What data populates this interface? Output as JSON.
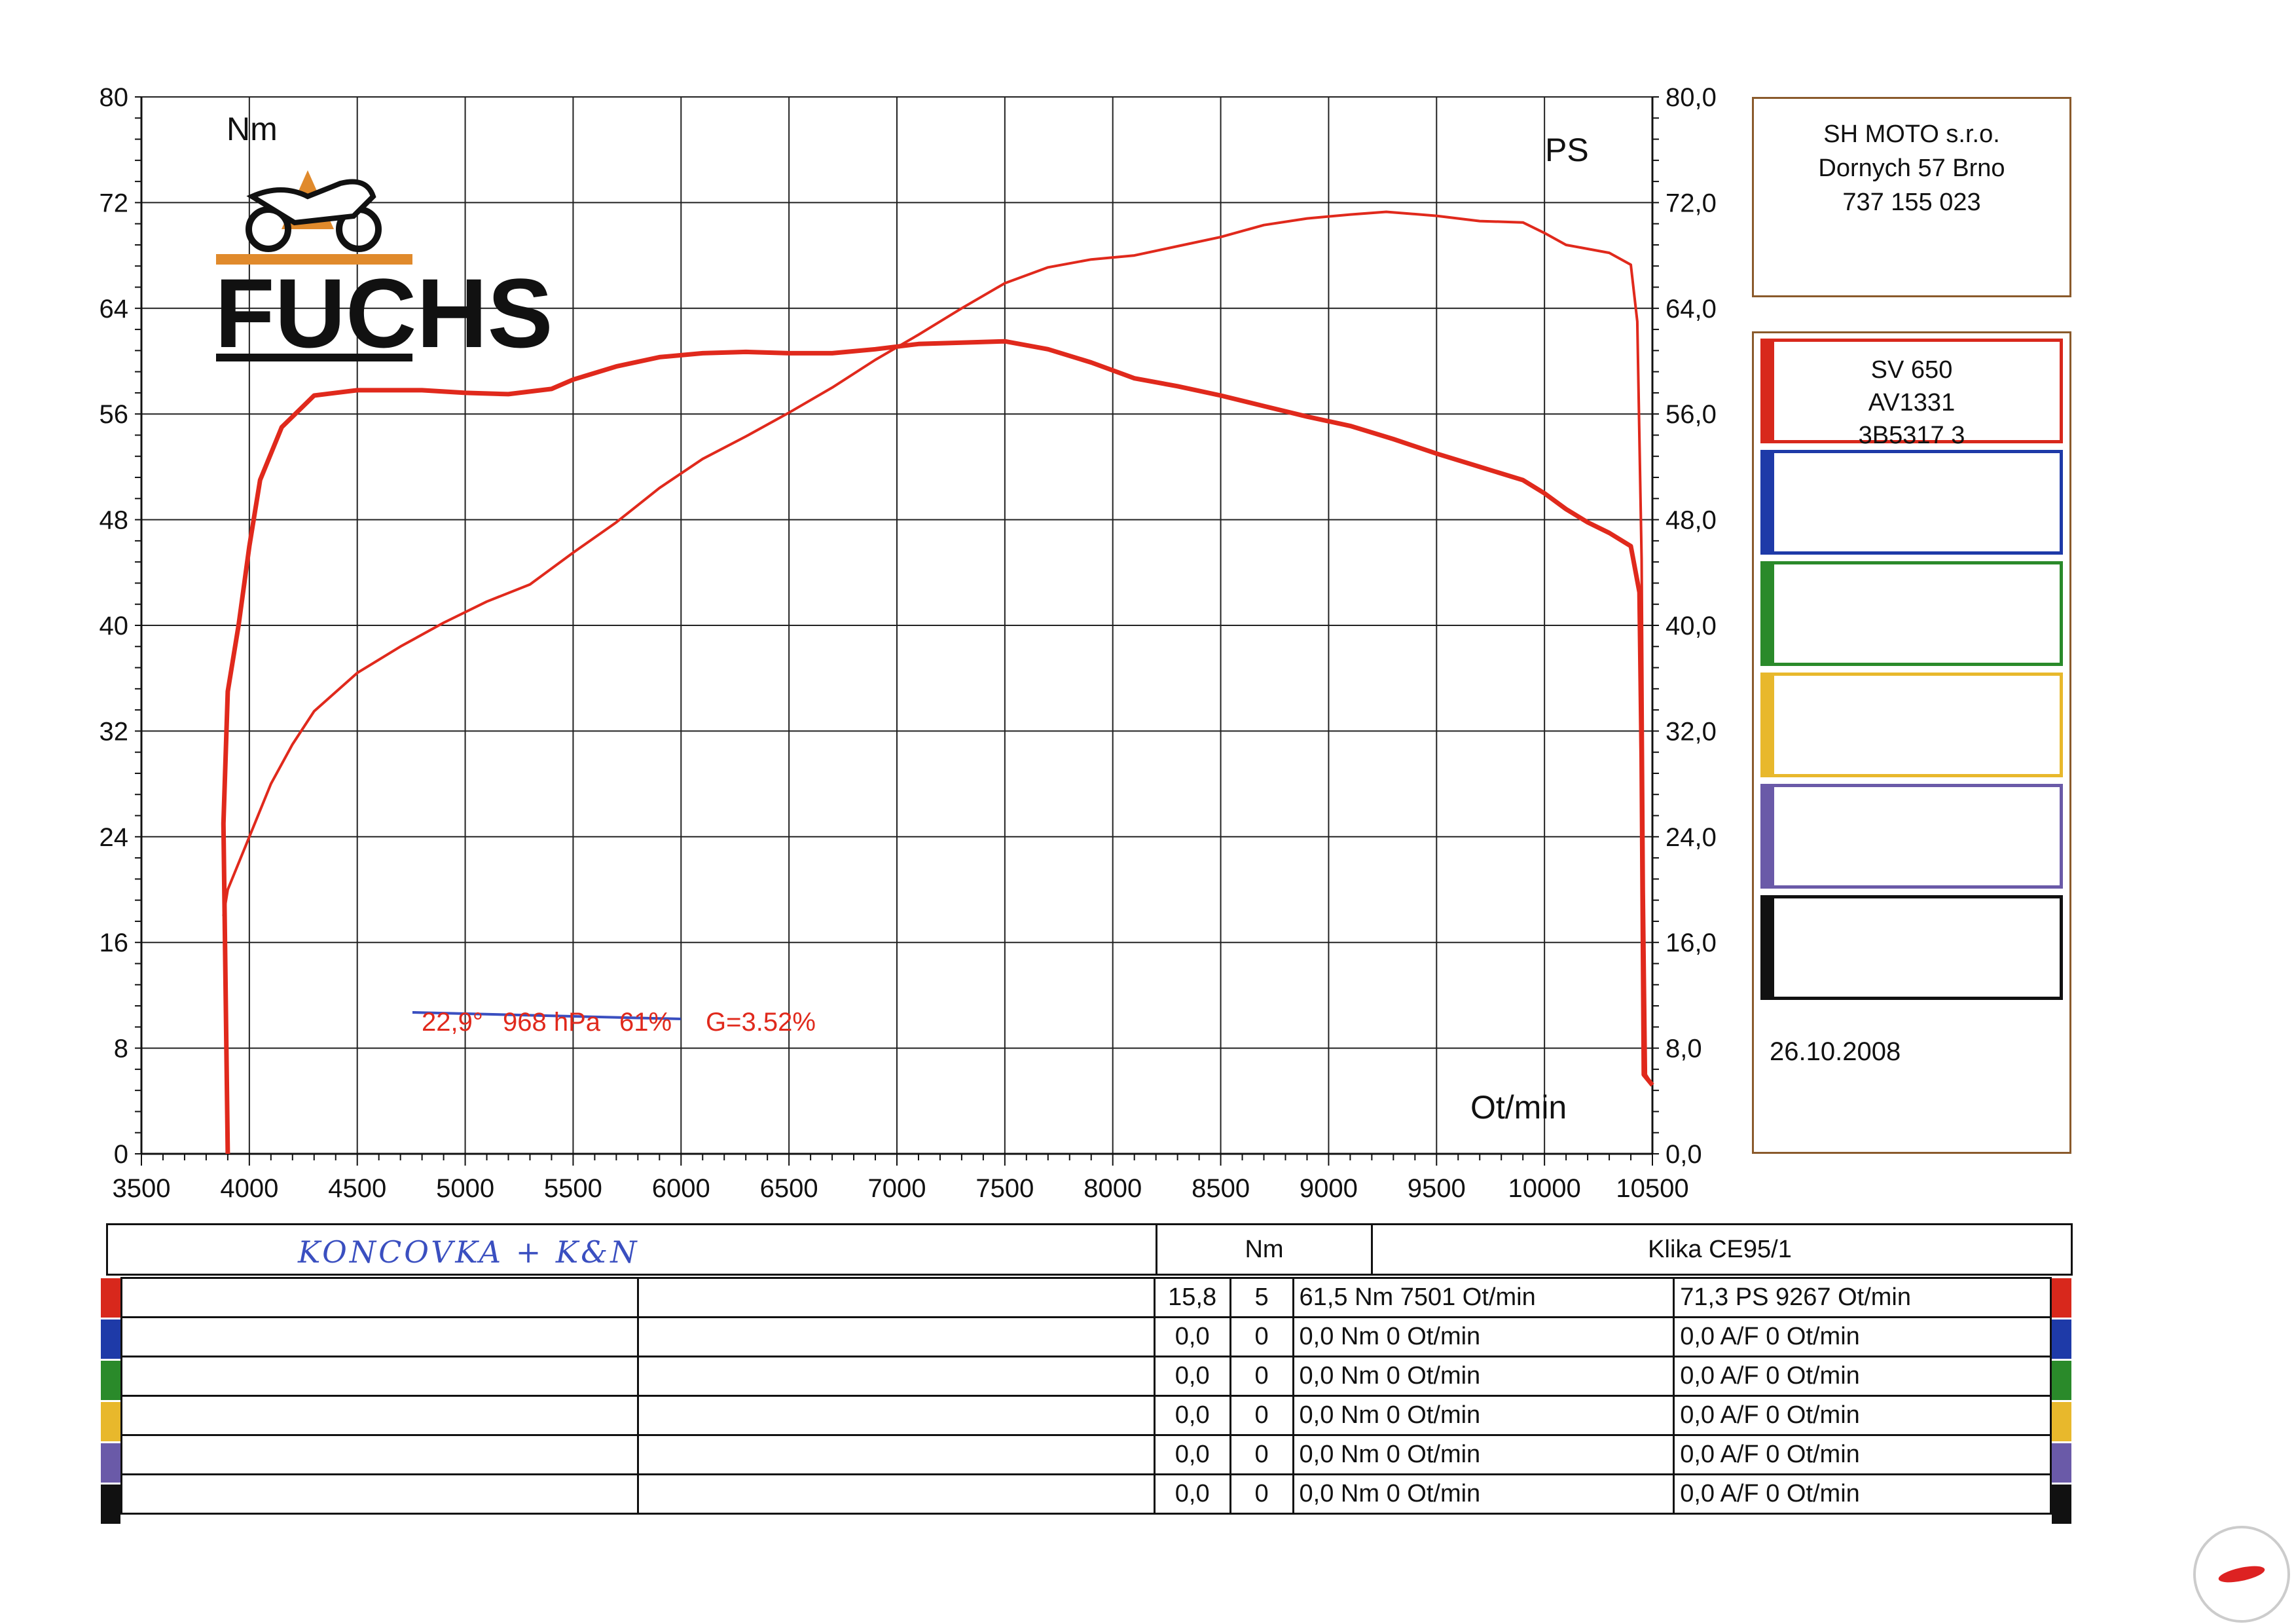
{
  "chart_data": {
    "type": "line",
    "xlabel": "Ot/min",
    "ylabel_left": "Nm",
    "ylabel_right": "PS",
    "xlim": [
      3500,
      10500
    ],
    "ylim_left": [
      0,
      80
    ],
    "ylim_right": [
      0,
      80
    ],
    "x_ticks": [
      "3500",
      "4000",
      "4500",
      "5000",
      "5500",
      "6000",
      "6500",
      "7000",
      "7500",
      "8000",
      "8500",
      "9000",
      "9500",
      "10000",
      "10500"
    ],
    "y_left_ticks": [
      "0",
      "8",
      "16",
      "24",
      "32",
      "40",
      "48",
      "56",
      "64",
      "72",
      "80"
    ],
    "y_right_ticks": [
      "0,0",
      "8,0",
      "16,0",
      "24,0",
      "32,0",
      "40,0",
      "48,0",
      "56,0",
      "64,0",
      "72,0",
      "80,0"
    ],
    "grid": true,
    "series": [
      {
        "key": "torque",
        "color": "#e0291c",
        "points": [
          [
            3900,
            0
          ],
          [
            3880,
            25
          ],
          [
            3900,
            35
          ],
          [
            3950,
            40
          ],
          [
            4000,
            46
          ],
          [
            4050,
            51
          ],
          [
            4150,
            55
          ],
          [
            4300,
            57.4
          ],
          [
            4500,
            57.8
          ],
          [
            4800,
            57.8
          ],
          [
            5000,
            57.6
          ],
          [
            5200,
            57.5
          ],
          [
            5400,
            57.9
          ],
          [
            5500,
            58.6
          ],
          [
            5700,
            59.6
          ],
          [
            5900,
            60.3
          ],
          [
            6100,
            60.6
          ],
          [
            6300,
            60.7
          ],
          [
            6500,
            60.6
          ],
          [
            6700,
            60.6
          ],
          [
            6900,
            60.9
          ],
          [
            7100,
            61.3
          ],
          [
            7300,
            61.4
          ],
          [
            7500,
            61.5
          ],
          [
            7700,
            60.9
          ],
          [
            7900,
            59.9
          ],
          [
            8100,
            58.7
          ],
          [
            8300,
            58.1
          ],
          [
            8500,
            57.4
          ],
          [
            8700,
            56.6
          ],
          [
            8900,
            55.8
          ],
          [
            9100,
            55.1
          ],
          [
            9300,
            54.1
          ],
          [
            9500,
            53.0
          ],
          [
            9700,
            52.0
          ],
          [
            9900,
            51.0
          ],
          [
            10000,
            50.0
          ],
          [
            10100,
            48.8
          ],
          [
            10200,
            47.8
          ],
          [
            10300,
            47.0
          ],
          [
            10400,
            46.0
          ],
          [
            10440,
            42.5
          ],
          [
            10450,
            30
          ],
          [
            10460,
            6
          ],
          [
            10500,
            5.2
          ]
        ]
      },
      {
        "key": "power",
        "color": "#e0291c",
        "points": [
          [
            3880,
            18
          ],
          [
            3900,
            20
          ],
          [
            4000,
            24
          ],
          [
            4100,
            28
          ],
          [
            4200,
            31
          ],
          [
            4300,
            33.5
          ],
          [
            4500,
            36.4
          ],
          [
            4700,
            38.4
          ],
          [
            4900,
            40.2
          ],
          [
            5100,
            41.8
          ],
          [
            5300,
            43.1
          ],
          [
            5500,
            45.5
          ],
          [
            5700,
            47.8
          ],
          [
            5900,
            50.4
          ],
          [
            6100,
            52.6
          ],
          [
            6300,
            54.3
          ],
          [
            6500,
            56.1
          ],
          [
            6700,
            58.0
          ],
          [
            6900,
            60.1
          ],
          [
            7100,
            62.0
          ],
          [
            7300,
            64.0
          ],
          [
            7500,
            65.9
          ],
          [
            7700,
            67.1
          ],
          [
            7900,
            67.7
          ],
          [
            8100,
            68.0
          ],
          [
            8300,
            68.7
          ],
          [
            8500,
            69.4
          ],
          [
            8700,
            70.3
          ],
          [
            8900,
            70.8
          ],
          [
            9100,
            71.1
          ],
          [
            9267,
            71.3
          ],
          [
            9500,
            71.0
          ],
          [
            9700,
            70.6
          ],
          [
            9900,
            70.5
          ],
          [
            10000,
            69.7
          ],
          [
            10100,
            68.8
          ],
          [
            10300,
            68.2
          ],
          [
            10400,
            67.3
          ],
          [
            10430,
            63
          ],
          [
            10450,
            45
          ],
          [
            10460,
            20
          ],
          [
            10470,
            6
          ],
          [
            10500,
            5.2
          ]
        ]
      }
    ],
    "conditions": {
      "temp": "22,9°",
      "pressure": "968 hPa",
      "humidity": "61%",
      "g": "G=3.52%"
    }
  },
  "brand": {
    "name": "FUCHS"
  },
  "shop": {
    "line1": "SH MOTO s.r.o.",
    "line2": "Dornych 57 Brno",
    "line3": "737 155 023"
  },
  "legend": {
    "slots": [
      {
        "color": "#d8281c",
        "line1": "SV 650",
        "line2": "AV1331",
        "line3": "3B5317 3"
      },
      {
        "color": "#1e3aa8",
        "line1": "",
        "line2": "",
        "line3": ""
      },
      {
        "color": "#2a8a2a",
        "line1": "",
        "line2": "",
        "line3": ""
      },
      {
        "color": "#e8b82c",
        "line1": "",
        "line2": "",
        "line3": ""
      },
      {
        "color": "#6a5aa8",
        "line1": "",
        "line2": "",
        "line3": ""
      },
      {
        "color": "#111111",
        "line1": "",
        "line2": "",
        "line3": ""
      }
    ],
    "date": "26.10.2008"
  },
  "table": {
    "note": "KONCOVKA + K&N",
    "unit_header": "Nm",
    "right_header": "Klika CE95/1",
    "rows": [
      {
        "color": "#d8281c",
        "v1": "15,8",
        "v2": "5",
        "torque": "61,5 Nm 7501 Ot/min",
        "power": "71,3 PS 9267 Ot/min"
      },
      {
        "color": "#1e3aa8",
        "v1": "0,0",
        "v2": "0",
        "torque": "0,0 Nm 0 Ot/min",
        "power": "0,0 A/F 0 Ot/min"
      },
      {
        "color": "#2a8a2a",
        "v1": "0,0",
        "v2": "0",
        "torque": "0,0 Nm 0 Ot/min",
        "power": "0,0 A/F 0 Ot/min"
      },
      {
        "color": "#e8b82c",
        "v1": "0,0",
        "v2": "0",
        "torque": "0,0 Nm 0 Ot/min",
        "power": "0,0 A/F 0 Ot/min"
      },
      {
        "color": "#6a5aa8",
        "v1": "0,0",
        "v2": "0",
        "torque": "0,0 Nm 0 Ot/min",
        "power": "0,0 A/F 0 Ot/min"
      },
      {
        "color": "#111111",
        "v1": "0,0",
        "v2": "0",
        "torque": "0,0 Nm 0 Ot/min",
        "power": "0,0 A/F 0 Ot/min"
      }
    ]
  }
}
